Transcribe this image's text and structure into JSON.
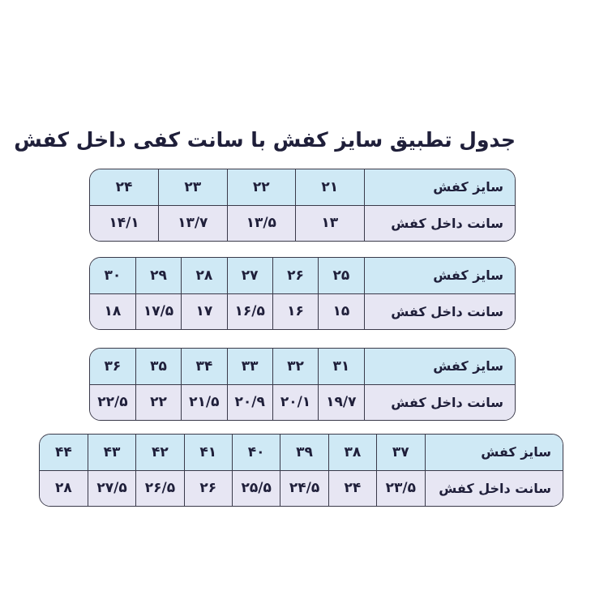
{
  "title": "جدول تطبیق سایز کفش با سانت کفی داخل کفش",
  "row_labels": {
    "size": "سایز کفش",
    "cm": "سانت داخل کفش"
  },
  "colors": {
    "header_row": "#cfe9f5",
    "value_row": "#e7e6f3",
    "border": "#3a3a4a"
  },
  "tables": [
    {
      "sizes": [
        "۲۱",
        "۲۲",
        "۲۳",
        "۲۴"
      ],
      "cm": [
        "۱۳",
        "۱۳/۵",
        "۱۳/۷",
        "۱۴/۱"
      ]
    },
    {
      "sizes": [
        "۲۵",
        "۲۶",
        "۲۷",
        "۲۸",
        "۲۹",
        "۳۰"
      ],
      "cm": [
        "۱۵",
        "۱۶",
        "۱۶/۵",
        "۱۷",
        "۱۷/۵",
        "۱۸"
      ]
    },
    {
      "sizes": [
        "۳۱",
        "۳۲",
        "۳۳",
        "۳۴",
        "۳۵",
        "۳۶"
      ],
      "cm": [
        "۱۹/۷",
        "۲۰/۱",
        "۲۰/۹",
        "۲۱/۵",
        "۲۲",
        "۲۲/۵"
      ]
    },
    {
      "sizes": [
        "۳۷",
        "۳۸",
        "۳۹",
        "۴۰",
        "۴۱",
        "۴۲",
        "۴۳",
        "۴۴"
      ],
      "cm": [
        "۲۳/۵",
        "۲۴",
        "۲۴/۵",
        "۲۵/۵",
        "۲۶",
        "۲۶/۵",
        "۲۷/۵",
        "۲۸"
      ]
    }
  ]
}
